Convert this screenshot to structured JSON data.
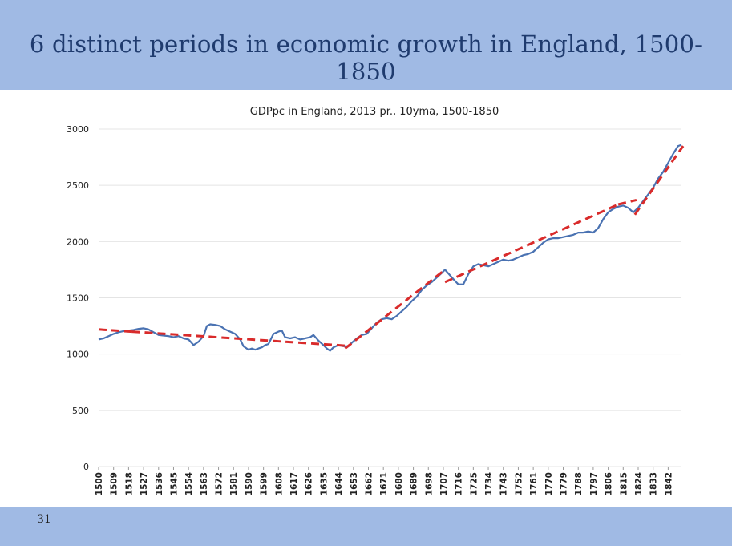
{
  "slide": {
    "title": "6 distinct periods in economic growth in England, 1500-1850",
    "number": "31"
  },
  "colors": {
    "header_band": "#a0bae4",
    "title_text": "#1f3b6e",
    "series_line": "#4a72b2",
    "trend_line": "#d92b2b",
    "grid": "#e4e4e4"
  },
  "chart_data": {
    "type": "line",
    "title": "GDPpc in England, 2013 pr., 10yma, 1500-1850",
    "xlabel": "",
    "ylabel": "",
    "ylim": [
      0,
      3000
    ],
    "yticks": [
      0,
      500,
      1000,
      1500,
      2000,
      2500,
      3000
    ],
    "xlim": [
      1500,
      1850
    ],
    "xticks": [
      1500,
      1509,
      1518,
      1527,
      1536,
      1545,
      1554,
      1563,
      1572,
      1581,
      1590,
      1599,
      1608,
      1617,
      1626,
      1635,
      1644,
      1653,
      1662,
      1671,
      1680,
      1689,
      1698,
      1707,
      1716,
      1725,
      1734,
      1743,
      1752,
      1761,
      1770,
      1779,
      1788,
      1797,
      1806,
      1815,
      1824,
      1833,
      1842
    ],
    "grid": true,
    "legend": "none",
    "series": [
      {
        "x": [
          1500,
          1503,
          1506,
          1509,
          1512,
          1515,
          1518,
          1521,
          1524,
          1527,
          1530,
          1533,
          1536,
          1539,
          1542,
          1545,
          1548,
          1551,
          1554,
          1557,
          1560,
          1563,
          1565,
          1567,
          1570,
          1573,
          1576,
          1579,
          1582,
          1585,
          1587,
          1590,
          1592,
          1594,
          1596,
          1598,
          1600,
          1602,
          1605,
          1608,
          1610,
          1612,
          1615,
          1618,
          1621,
          1624,
          1627,
          1629,
          1632,
          1635,
          1637,
          1639,
          1641,
          1644,
          1647,
          1650,
          1652,
          1655,
          1658,
          1661,
          1664,
          1667,
          1670,
          1673,
          1676,
          1679,
          1682,
          1685,
          1688,
          1691,
          1694,
          1697,
          1700,
          1703,
          1706,
          1708,
          1711,
          1714,
          1716,
          1719,
          1722,
          1725,
          1728,
          1731,
          1734,
          1737,
          1740,
          1743,
          1746,
          1749,
          1752,
          1755,
          1758,
          1761,
          1764,
          1767,
          1770,
          1773,
          1776,
          1779,
          1782,
          1785,
          1788,
          1791,
          1794,
          1797,
          1800,
          1803,
          1806,
          1809,
          1812,
          1815,
          1818,
          1821,
          1824,
          1827,
          1830,
          1833,
          1836,
          1839,
          1842,
          1845,
          1848,
          1850
        ],
        "values": [
          1130,
          1140,
          1160,
          1180,
          1195,
          1205,
          1210,
          1215,
          1225,
          1230,
          1220,
          1195,
          1170,
          1165,
          1160,
          1150,
          1160,
          1140,
          1130,
          1080,
          1110,
          1160,
          1250,
          1265,
          1260,
          1250,
          1220,
          1200,
          1180,
          1130,
          1070,
          1040,
          1050,
          1040,
          1050,
          1060,
          1080,
          1090,
          1180,
          1200,
          1210,
          1150,
          1140,
          1150,
          1130,
          1140,
          1150,
          1170,
          1120,
          1080,
          1050,
          1030,
          1060,
          1080,
          1070,
          1070,
          1100,
          1140,
          1170,
          1180,
          1230,
          1280,
          1310,
          1320,
          1310,
          1340,
          1380,
          1420,
          1470,
          1510,
          1570,
          1610,
          1640,
          1680,
          1720,
          1750,
          1700,
          1650,
          1620,
          1620,
          1710,
          1780,
          1800,
          1790,
          1780,
          1800,
          1820,
          1840,
          1830,
          1840,
          1860,
          1880,
          1890,
          1910,
          1950,
          1990,
          2020,
          2030,
          2030,
          2040,
          2050,
          2060,
          2080,
          2080,
          2090,
          2080,
          2120,
          2200,
          2260,
          2290,
          2310,
          2320,
          2300,
          2260,
          2300,
          2360,
          2420,
          2480,
          2560,
          2620,
          2700,
          2780,
          2850,
          2860
        ]
      }
    ],
    "trend_segments": [
      {
        "x": [
          1500,
          1520
        ],
        "values": [
          1220,
          1200
        ]
      },
      {
        "x": [
          1520,
          1648
        ],
        "values": [
          1200,
          1075
        ]
      },
      {
        "x": [
          1648,
          1708
        ],
        "values": [
          1050,
          1750
        ]
      },
      {
        "x": [
          1708,
          1812
        ],
        "values": [
          1640,
          2330
        ]
      },
      {
        "x": [
          1812,
          1823
        ],
        "values": [
          2330,
          2370
        ]
      },
      {
        "x": [
          1822,
          1851
        ],
        "values": [
          2240,
          2850
        ]
      }
    ]
  }
}
